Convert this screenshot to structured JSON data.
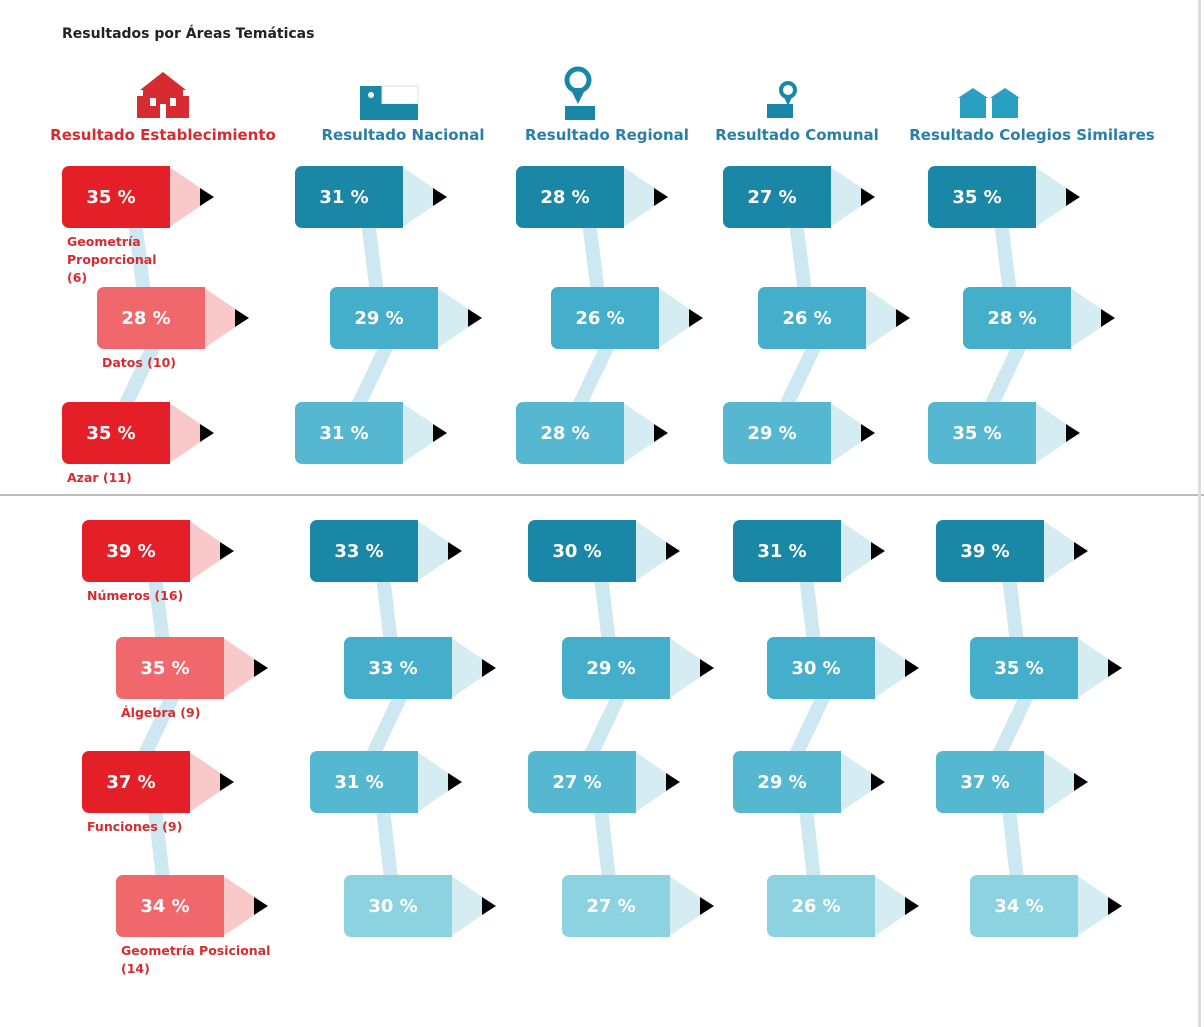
{
  "title": "Resultados por Áreas Temáticas",
  "columns": [
    "Resultado Establecimiento",
    "Resultado Nacional",
    "Resultado Regional",
    "Resultado Comunal",
    "Resultado Colegios Similares"
  ],
  "panels": [
    {
      "rows": [
        {
          "label": "Geometría Proporcional (6)",
          "values": [
            "35 %",
            "31 %",
            "28 %",
            "27 %",
            "35 %"
          ]
        },
        {
          "label": "Datos (10)",
          "values": [
            "28 %",
            "29 %",
            "26 %",
            "26 %",
            "28 %"
          ]
        },
        {
          "label": "Azar (11)",
          "values": [
            "35 %",
            "31 %",
            "28 %",
            "29 %",
            "35 %"
          ]
        }
      ]
    },
    {
      "rows": [
        {
          "label": "Números (16)",
          "values": [
            "39 %",
            "33 %",
            "30 %",
            "31 %",
            "39 %"
          ]
        },
        {
          "label": "Álgebra (9)",
          "values": [
            "35 %",
            "33 %",
            "29 %",
            "30 %",
            "35 %"
          ]
        },
        {
          "label": "Funciones (9)",
          "values": [
            "37 %",
            "31 %",
            "27 %",
            "29 %",
            "37 %"
          ]
        },
        {
          "label": "Geometría Posicional (14)",
          "values": [
            "34 %",
            "30 %",
            "27 %",
            "26 %",
            "34 %"
          ]
        }
      ]
    }
  ]
}
